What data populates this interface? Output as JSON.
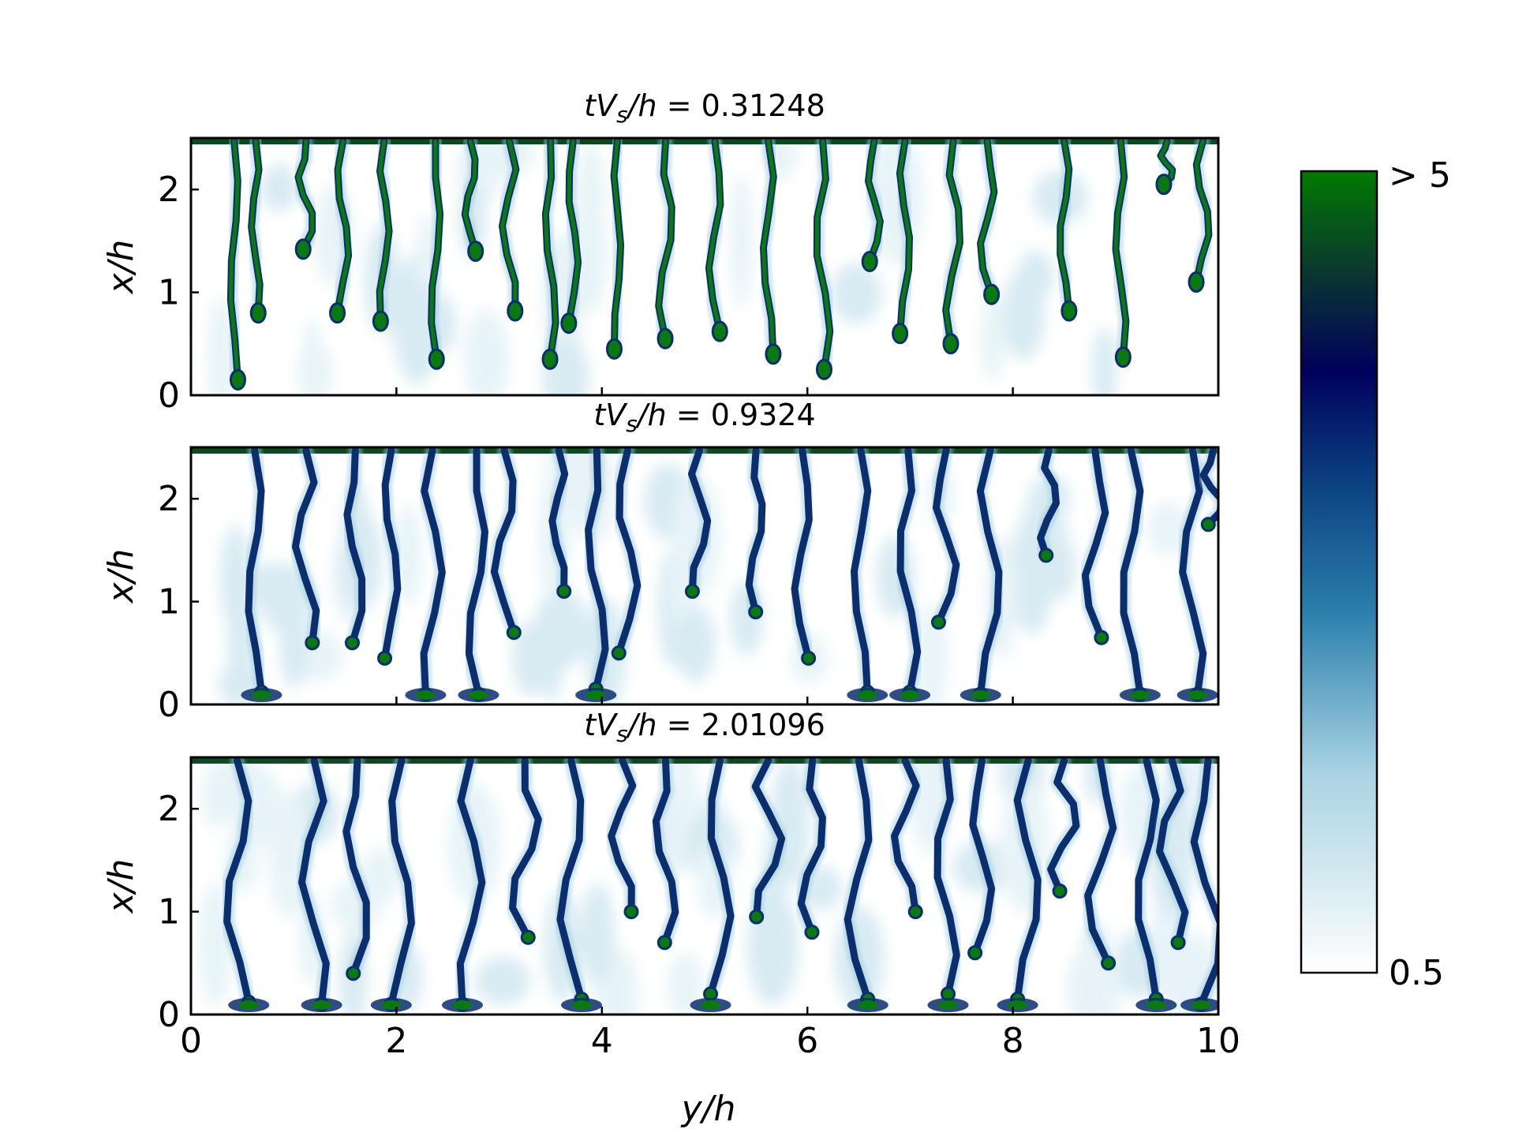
{
  "chart_data": {
    "type": "heatmap",
    "colormap": [
      "#ffffff",
      "#bfe0ea",
      "#3a8bb3",
      "#0d4d86",
      "#00005c",
      "#0a3a2a",
      "#007a00"
    ],
    "colorbar": {
      "min_label": "0.5",
      "max_label": "> 5",
      "vmin": 0.5,
      "vmax": 5
    },
    "xlabel": "y/h",
    "ylabel": "x/h",
    "xlim": [
      0,
      10
    ],
    "ylim": [
      0,
      2.5
    ],
    "x_ticks": [
      "0",
      "2",
      "4",
      "6",
      "8",
      "10"
    ],
    "y_ticks": [
      "0",
      "1",
      "2"
    ],
    "panels": [
      {
        "title": "tV_s/h = 0.31248",
        "fingers": [
          {
            "y": 0.42,
            "tip": 0.15
          },
          {
            "y": 0.63,
            "tip": 0.8
          },
          {
            "y": 1.12,
            "tip": 1.42
          },
          {
            "y": 1.48,
            "tip": 0.8
          },
          {
            "y": 1.88,
            "tip": 0.72
          },
          {
            "y": 2.38,
            "tip": 0.35
          },
          {
            "y": 2.72,
            "tip": 1.4
          },
          {
            "y": 3.1,
            "tip": 0.82
          },
          {
            "y": 3.5,
            "tip": 0.35
          },
          {
            "y": 3.72,
            "tip": 0.7
          },
          {
            "y": 4.15,
            "tip": 0.45
          },
          {
            "y": 4.62,
            "tip": 0.55
          },
          {
            "y": 5.1,
            "tip": 0.62
          },
          {
            "y": 5.62,
            "tip": 0.4
          },
          {
            "y": 6.15,
            "tip": 0.25
          },
          {
            "y": 6.65,
            "tip": 1.3
          },
          {
            "y": 6.95,
            "tip": 0.6
          },
          {
            "y": 7.42,
            "tip": 0.5
          },
          {
            "y": 7.75,
            "tip": 0.98
          },
          {
            "y": 8.5,
            "tip": 0.82
          },
          {
            "y": 9.05,
            "tip": 0.37
          },
          {
            "y": 9.5,
            "tip": 2.05
          },
          {
            "y": 9.85,
            "tip": 1.1
          }
        ]
      },
      {
        "title": "tV_s/h = 0.9324",
        "fingers": [
          {
            "y": 0.62,
            "tip": 0.12
          },
          {
            "y": 1.12,
            "tip": 0.6
          },
          {
            "y": 1.6,
            "tip": 0.6
          },
          {
            "y": 1.95,
            "tip": 0.45
          },
          {
            "y": 2.35,
            "tip": 0.1
          },
          {
            "y": 2.78,
            "tip": 0.1
          },
          {
            "y": 3.05,
            "tip": 0.7
          },
          {
            "y": 3.58,
            "tip": 1.1
          },
          {
            "y": 3.95,
            "tip": 0.15
          },
          {
            "y": 4.25,
            "tip": 0.5
          },
          {
            "y": 4.95,
            "tip": 1.1
          },
          {
            "y": 5.5,
            "tip": 0.9
          },
          {
            "y": 5.95,
            "tip": 0.45
          },
          {
            "y": 6.52,
            "tip": 0.12
          },
          {
            "y": 6.98,
            "tip": 0.12
          },
          {
            "y": 7.35,
            "tip": 0.8
          },
          {
            "y": 7.78,
            "tip": 0.1
          },
          {
            "y": 8.35,
            "tip": 1.45
          },
          {
            "y": 8.8,
            "tip": 0.65
          },
          {
            "y": 9.15,
            "tip": 0.1
          },
          {
            "y": 9.75,
            "tip": 0.1
          },
          {
            "y": 9.95,
            "tip": 1.75
          }
        ]
      },
      {
        "title": "tV_s/h = 2.01096",
        "fingers": [
          {
            "y": 0.45,
            "tip": 0.12
          },
          {
            "y": 1.2,
            "tip": 0.1
          },
          {
            "y": 1.62,
            "tip": 0.4
          },
          {
            "y": 2.05,
            "tip": 0.1
          },
          {
            "y": 2.72,
            "tip": 0.1
          },
          {
            "y": 3.25,
            "tip": 0.75
          },
          {
            "y": 3.7,
            "tip": 0.15
          },
          {
            "y": 4.2,
            "tip": 1.0
          },
          {
            "y": 4.62,
            "tip": 0.7
          },
          {
            "y": 5.15,
            "tip": 0.2
          },
          {
            "y": 5.62,
            "tip": 0.95
          },
          {
            "y": 6.05,
            "tip": 0.8
          },
          {
            "y": 6.5,
            "tip": 0.15
          },
          {
            "y": 6.95,
            "tip": 1.0
          },
          {
            "y": 7.35,
            "tip": 0.2
          },
          {
            "y": 7.7,
            "tip": 0.6
          },
          {
            "y": 8.15,
            "tip": 0.15
          },
          {
            "y": 8.5,
            "tip": 1.2
          },
          {
            "y": 8.85,
            "tip": 0.5
          },
          {
            "y": 9.3,
            "tip": 0.15
          },
          {
            "y": 9.55,
            "tip": 0.7
          },
          {
            "y": 9.9,
            "tip": 0.1
          }
        ]
      }
    ]
  }
}
